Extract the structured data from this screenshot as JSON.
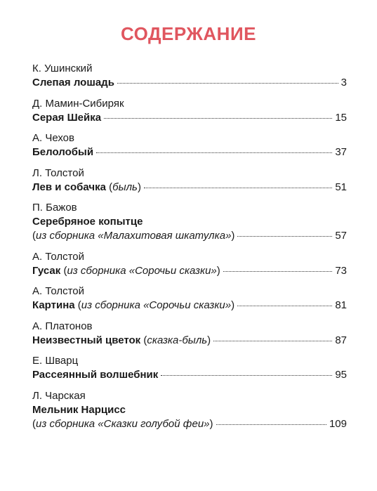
{
  "heading": "СОДЕРЖАНИЕ",
  "entries": [
    {
      "author": "К. Ушинский",
      "title": "Слепая лошадь",
      "note_open": "",
      "note": "",
      "note_close": "",
      "page": "3"
    },
    {
      "author": "Д. Мамин-Сибиряк",
      "title": "Серая Шейка",
      "note_open": "",
      "note": "",
      "note_close": "",
      "page": "15"
    },
    {
      "author": "А. Чехов",
      "title": "Белолобый",
      "note_open": "",
      "note": "",
      "note_close": "",
      "page": "37"
    },
    {
      "author": "Л. Толстой",
      "title": "Лев и собачка",
      "note_open": "(",
      "note": "быль",
      "note_close": ")",
      "page": "51"
    },
    {
      "author": "П. Бажов",
      "title": "Серебряное копытце",
      "note_open": "(",
      "note": "из сборника «Малахитовая шкатулка»",
      "note_close": ")",
      "page": "57"
    },
    {
      "author": "А. Толстой",
      "title": "Гусак",
      "note_open": "(",
      "note": "из сборника «Сорочьи сказки»",
      "note_close": ")",
      "page": "73"
    },
    {
      "author": "А. Толстой",
      "title": "Картина",
      "note_open": "(",
      "note": "из сборника «Сорочьи сказки»",
      "note_close": ")",
      "page": "81"
    },
    {
      "author": "А. Платонов",
      "title": "Неизвестный цветок",
      "note_open": "(",
      "note": "сказка-быль",
      "note_close": ")",
      "page": "87"
    },
    {
      "author": "Е. Шварц",
      "title": "Рассеянный волшебник",
      "note_open": "",
      "note": "",
      "note_close": "",
      "page": "95"
    },
    {
      "author": "Л. Чарская",
      "title": "Мельник Нарцисс",
      "note_open": "(",
      "note": "из сборника «Сказки голубой феи»",
      "note_close": ")",
      "page": "109"
    }
  ]
}
